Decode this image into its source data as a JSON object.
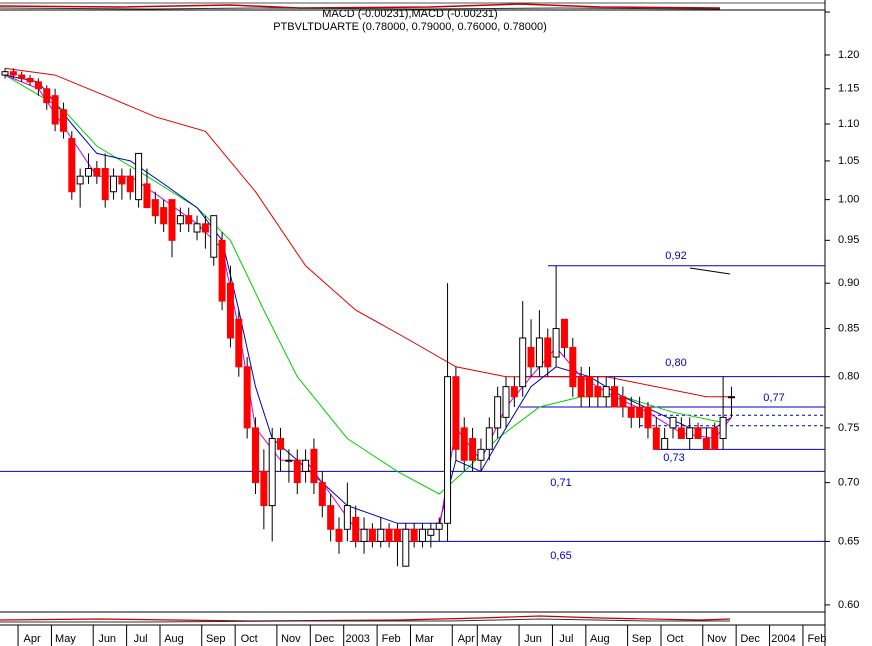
{
  "chart_data": {
    "type": "candlestick",
    "header": "MACD (-0.00231),MACD (-0.00231)",
    "title": "PTBVLTDUARTE (0.78000, 0.79000, 0.76000, 0.78000)",
    "log_scale": true,
    "ylim": [
      0.585,
      1.27
    ],
    "yticks": [
      {
        "value": 0.6,
        "label": "0.60"
      },
      0.65,
      {
        "value": 0.7,
        "label": "0.70"
      },
      0.75,
      {
        "value": 0.8,
        "label": "0.80"
      },
      0.85,
      {
        "value": 0.9,
        "label": "0.90"
      },
      0.95,
      {
        "value": 1,
        "label": "1.00"
      },
      1.05,
      {
        "value": 1.1,
        "label": "1.10"
      },
      1.15,
      {
        "value": 1.2,
        "label": "1.20"
      }
    ],
    "categories": [
      null,
      null,
      null,
      "Apr",
      null,
      null,
      null,
      "May",
      null,
      null,
      null,
      null,
      "Jun",
      null,
      null,
      null,
      "Jul",
      null,
      null,
      null,
      "Aug",
      null,
      null,
      null,
      null,
      "Sep",
      null,
      null,
      null,
      "Oct",
      null,
      null,
      null,
      null,
      "Nov",
      null,
      null,
      null,
      "Dec",
      null,
      null,
      null,
      "2003",
      null,
      null,
      null,
      "Feb",
      null,
      null,
      null,
      "Mar",
      null,
      null,
      null,
      null,
      "Apr",
      null,
      null,
      "May",
      null,
      null,
      null,
      null,
      "Jun",
      null,
      null,
      null,
      "Jul",
      null,
      null,
      null,
      "Aug",
      null,
      null,
      null,
      null,
      "Sep",
      null,
      null,
      null,
      "Oct",
      null,
      null,
      null,
      null,
      "Nov",
      null,
      null,
      null,
      "Dec",
      null,
      null,
      null,
      "2004",
      null,
      null,
      null,
      "Feb",
      null
    ],
    "open": [
      1.17,
      1.175,
      1.17,
      1.165,
      1.16,
      1.15,
      1.14,
      1.12,
      1.08,
      1.02,
      1.03,
      1.04,
      1.04,
      1.01,
      1.03,
      1.03,
      1.0,
      1.02,
      1.0,
      0.99,
      1.0,
      0.97,
      0.98,
      0.96,
      0.97,
      0.93,
      0.95,
      0.9,
      0.86,
      0.81,
      0.75,
      0.71,
      0.68,
      0.74,
      0.72,
      0.72,
      0.71,
      0.73,
      0.7,
      0.68,
      0.66,
      0.66,
      0.67,
      0.65,
      0.66,
      0.65,
      0.66,
      0.66,
      0.63,
      0.66,
      0.65,
      0.655,
      0.66,
      0.665,
      0.8,
      0.75,
      0.74,
      0.72,
      0.73,
      0.75,
      0.76,
      0.79,
      0.79,
      0.83,
      0.81,
      0.84,
      0.82,
      0.86,
      0.83,
      0.8,
      0.8,
      0.79,
      0.78,
      0.79,
      0.78,
      0.77,
      0.77,
      0.77,
      0.75,
      0.73,
      0.75,
      0.75,
      0.74,
      0.75,
      0.74,
      0.75,
      0.74,
      0.78,
      null,
      null,
      null,
      null,
      null,
      null,
      null,
      null,
      null,
      null,
      null
    ],
    "high": [
      1.18,
      1.18,
      1.175,
      1.17,
      1.165,
      1.155,
      1.15,
      1.13,
      1.09,
      1.04,
      1.06,
      1.05,
      1.06,
      1.04,
      1.04,
      1.04,
      1.06,
      1.04,
      1.01,
      1.0,
      1.0,
      0.99,
      0.99,
      0.98,
      0.98,
      0.98,
      0.96,
      0.92,
      0.87,
      0.82,
      0.76,
      0.73,
      0.75,
      0.75,
      0.73,
      0.73,
      0.73,
      0.74,
      0.71,
      0.69,
      0.67,
      0.7,
      0.68,
      0.67,
      0.665,
      0.67,
      0.665,
      0.665,
      0.665,
      0.665,
      0.665,
      0.665,
      0.67,
      0.9,
      0.81,
      0.76,
      0.75,
      0.74,
      0.76,
      0.79,
      0.8,
      0.8,
      0.88,
      0.86,
      0.87,
      0.85,
      0.92,
      0.86,
      0.84,
      0.81,
      0.81,
      0.8,
      0.8,
      0.8,
      0.79,
      0.78,
      0.78,
      0.775,
      0.76,
      0.75,
      0.76,
      0.76,
      0.76,
      0.755,
      0.75,
      0.755,
      0.8,
      0.79,
      null,
      null,
      null,
      null,
      null,
      null,
      null,
      null,
      null,
      null,
      null
    ],
    "low": [
      1.165,
      1.165,
      1.16,
      1.155,
      1.14,
      1.12,
      1.09,
      1.08,
      1.0,
      0.99,
      1.02,
      1.02,
      0.99,
      1.0,
      1.0,
      1.0,
      0.99,
      0.99,
      0.97,
      0.96,
      0.93,
      0.96,
      0.96,
      0.95,
      0.94,
      0.92,
      0.87,
      0.83,
      0.8,
      0.74,
      0.69,
      0.66,
      0.65,
      0.71,
      0.7,
      0.69,
      0.7,
      0.69,
      0.67,
      0.65,
      0.64,
      0.65,
      0.645,
      0.64,
      0.645,
      0.645,
      0.645,
      0.63,
      0.63,
      0.645,
      0.645,
      0.645,
      0.65,
      0.65,
      0.72,
      0.71,
      0.71,
      0.71,
      0.72,
      0.74,
      0.75,
      0.77,
      0.78,
      0.8,
      0.8,
      0.8,
      0.81,
      0.82,
      0.78,
      0.77,
      0.77,
      0.77,
      0.77,
      0.77,
      0.76,
      0.75,
      0.75,
      0.74,
      0.73,
      0.73,
      0.74,
      0.74,
      0.73,
      0.74,
      0.73,
      0.73,
      0.73,
      0.76,
      null,
      null,
      null,
      null,
      null,
      null,
      null,
      null,
      null,
      null,
      null
    ],
    "close": [
      1.175,
      1.17,
      1.165,
      1.16,
      1.15,
      1.13,
      1.1,
      1.09,
      1.01,
      1.03,
      1.04,
      1.03,
      1.0,
      1.03,
      1.02,
      1.01,
      1.06,
      0.99,
      0.98,
      0.97,
      0.95,
      0.98,
      0.97,
      0.97,
      0.96,
      0.98,
      0.88,
      0.84,
      0.81,
      0.75,
      0.7,
      0.68,
      0.74,
      0.73,
      0.72,
      0.7,
      0.72,
      0.7,
      0.68,
      0.66,
      0.65,
      0.68,
      0.65,
      0.66,
      0.65,
      0.66,
      0.65,
      0.65,
      0.66,
      0.65,
      0.66,
      0.66,
      0.665,
      0.8,
      0.73,
      0.72,
      0.72,
      0.73,
      0.75,
      0.78,
      0.79,
      0.78,
      0.84,
      0.81,
      0.84,
      0.81,
      0.85,
      0.83,
      0.79,
      0.78,
      0.78,
      0.78,
      0.79,
      0.77,
      0.77,
      0.76,
      0.76,
      0.75,
      0.73,
      0.74,
      0.76,
      0.74,
      0.75,
      0.74,
      0.73,
      0.73,
      0.76,
      0.78,
      null,
      null,
      null,
      null,
      null,
      null,
      null,
      null,
      null,
      null,
      null
    ],
    "up_color": "#ffffff",
    "down_color": "#ff0000",
    "series": [
      {
        "color": "#e00000",
        "x": [
          0,
          6,
          12,
          18,
          24,
          30,
          36,
          42,
          48,
          54,
          60,
          72,
          84,
          87
        ],
        "values": [
          1.18,
          1.17,
          1.14,
          1.11,
          1.09,
          1.01,
          0.92,
          0.87,
          0.84,
          0.81,
          0.8,
          0.8,
          0.78,
          0.78
        ]
      },
      {
        "color": "#00d000",
        "x": [
          0,
          7,
          11,
          17,
          23,
          27,
          31,
          35,
          41,
          47,
          52,
          55,
          59,
          64,
          69,
          74,
          80,
          86,
          87
        ],
        "values": [
          1.17,
          1.12,
          1.07,
          1.03,
          0.99,
          0.95,
          0.87,
          0.8,
          0.74,
          0.71,
          0.69,
          0.71,
          0.74,
          0.77,
          0.78,
          0.78,
          0.765,
          0.755,
          0.76
        ]
      },
      {
        "color": "#0000c0",
        "x": [
          0,
          4,
          8,
          11,
          15,
          19,
          23,
          26,
          28,
          30,
          32,
          35,
          38,
          41,
          47,
          52,
          54,
          57,
          60,
          63,
          66,
          70,
          74,
          78,
          82,
          85,
          87
        ],
        "values": [
          1.17,
          1.16,
          1.1,
          1.06,
          1.05,
          1.02,
          0.99,
          0.95,
          0.87,
          0.79,
          0.74,
          0.72,
          0.7,
          0.68,
          0.665,
          0.665,
          0.72,
          0.71,
          0.75,
          0.79,
          0.81,
          0.8,
          0.78,
          0.765,
          0.75,
          0.75,
          0.76
        ]
      },
      {
        "color": "#d000d0",
        "x": [
          0,
          4,
          8,
          11,
          15,
          19,
          23,
          26,
          28,
          30,
          33,
          36,
          39,
          42,
          47,
          52,
          54,
          57,
          60,
          63,
          66,
          69,
          73,
          77,
          81,
          85,
          87
        ],
        "values": [
          1.17,
          1.15,
          1.08,
          1.03,
          1.03,
          1.0,
          0.97,
          0.94,
          0.85,
          0.75,
          0.72,
          0.72,
          0.69,
          0.66,
          0.66,
          0.66,
          0.75,
          0.72,
          0.77,
          0.8,
          0.83,
          0.8,
          0.78,
          0.765,
          0.745,
          0.74,
          0.76
        ]
      }
    ],
    "levels": [
      {
        "value": 0.92,
        "label": "0,92"
      },
      {
        "value": 0.8,
        "label": "0,80"
      },
      {
        "value": 0.77,
        "label": "0,77"
      },
      {
        "value": 0.73,
        "label": "0,73"
      },
      {
        "value": 0.71,
        "label": "0,71"
      },
      {
        "value": 0.65,
        "label": "0,65"
      }
    ],
    "dashed_levels": [
      0.762,
      0.752
    ],
    "level_color": "#0000c0"
  }
}
